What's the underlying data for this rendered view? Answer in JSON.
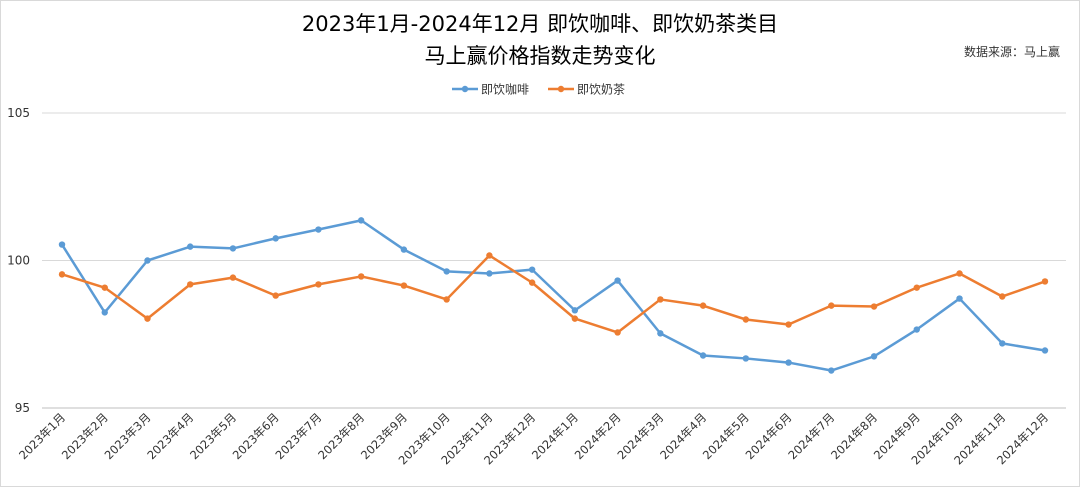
{
  "chart_data": {
    "type": "line",
    "title": [
      "2023年1月-2024年12月 即饮咖啡、即饮奶茶类目",
      "马上赢价格指数走势变化"
    ],
    "source": "数据来源：马上赢",
    "xlabel": "",
    "ylabel": "",
    "ylim": [
      95,
      105
    ],
    "yticks": [
      "95",
      "100",
      "105"
    ],
    "grid": true,
    "legend_position": "top-center",
    "categories": [
      "2023年1月",
      "2023年2月",
      "2023年3月",
      "2023年4月",
      "2023年5月",
      "2023年6月",
      "2023年7月",
      "2023年8月",
      "2023年9月",
      "2023年10月",
      "2023年11月",
      "2023年12月",
      "2024年1月",
      "2024年2月",
      "2024年3月",
      "2024年4月",
      "2024年5月",
      "2024年6月",
      "2024年7月",
      "2024年8月",
      "2024年9月",
      "2024年10月",
      "2024年11月",
      "2024年12月"
    ],
    "series": [
      {
        "name": "即饮咖啡",
        "color": "#5B9BD5",
        "values": [
          100.54,
          98.24,
          100.0,
          100.47,
          100.41,
          100.75,
          101.05,
          101.36,
          100.37,
          99.63,
          99.56,
          99.69,
          98.31,
          99.32,
          97.53,
          96.78,
          96.68,
          96.54,
          96.27,
          96.75,
          97.66,
          98.71,
          97.19,
          96.95
        ]
      },
      {
        "name": "即饮奶茶",
        "color": "#ED7D31",
        "values": [
          99.53,
          99.08,
          98.03,
          99.19,
          99.42,
          98.81,
          99.19,
          99.46,
          99.15,
          98.68,
          100.17,
          99.25,
          98.03,
          97.56,
          98.68,
          98.47,
          98.0,
          97.83,
          98.47,
          98.44,
          99.08,
          99.56,
          98.78,
          99.29
        ]
      }
    ]
  }
}
